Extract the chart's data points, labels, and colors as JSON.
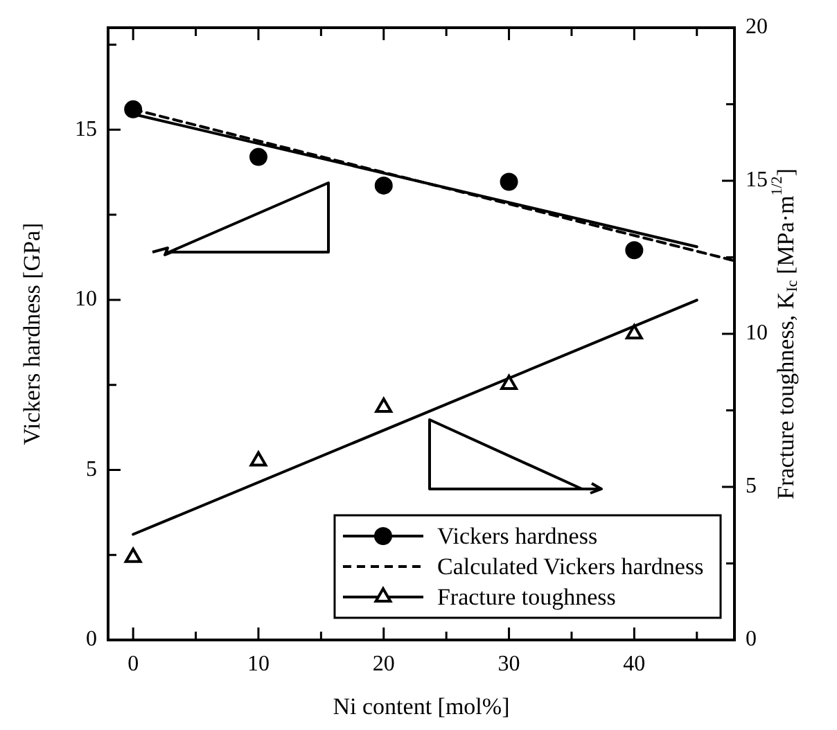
{
  "chart_data": {
    "type": "scatter",
    "xlabel": "Ni content [mol%]",
    "ylabel": "Vickers hardness [GPa]",
    "y2label": "Fracture toughness, K$_{Ic}$ [MPa·m$^{1/2}$]",
    "xlim": [
      -2,
      48
    ],
    "xticks": [
      0,
      {
        "value": 5,
        "label": null
      },
      10,
      {
        "value": 15,
        "label": null
      },
      20,
      {
        "value": 25,
        "label": null
      },
      30,
      {
        "value": 35,
        "label": null
      },
      40,
      {
        "value": 45,
        "label": null
      }
    ],
    "ylim": [
      0,
      18
    ],
    "yticks": [
      0,
      {
        "value": 2.5,
        "label": null
      },
      5,
      {
        "value": 7.5,
        "label": null
      },
      10,
      {
        "value": 12.5,
        "label": null
      },
      15,
      {
        "value": 17.5,
        "label": null
      }
    ],
    "y2lim": [
      0,
      20
    ],
    "y2ticks": [
      0,
      {
        "value": 2.5,
        "label": null
      },
      5,
      {
        "value": 7.5,
        "label": null
      },
      10,
      {
        "value": 12.5,
        "label": null
      },
      15,
      {
        "value": 17.5,
        "label": null
      },
      20
    ],
    "grid": false,
    "legend": "bottom right",
    "series": [
      {
        "name": "Vickers hardness",
        "type": "scatter",
        "marker": "circle",
        "color": "#000000",
        "x": [
          0,
          10,
          20,
          30,
          40
        ],
        "values": [
          15.6,
          14.2,
          13.36,
          13.47,
          11.46
        ]
      },
      {
        "type": "line",
        "marker": "none",
        "line_style": "solid",
        "color": "#000000",
        "x": [
          0,
          45
        ],
        "values": [
          15.46,
          11.56
        ]
      },
      {
        "name": "Calculated Vickers hardness",
        "type": "line",
        "marker": "none",
        "line_style": "dashed",
        "color": "#000000",
        "x": [
          0,
          48
        ],
        "values": [
          15.6,
          11.15
        ]
      },
      {
        "name": "Fracture toughness",
        "type": "scatter",
        "marker": "triangle",
        "axis": "y2",
        "color": "#000000",
        "x": [
          0,
          10,
          20,
          30,
          40
        ],
        "values": [
          2.7,
          5.85,
          7.6,
          8.35,
          10.0
        ]
      },
      {
        "type": "line",
        "marker": "none",
        "line_style": "solid",
        "axis": "y2",
        "color": "#000000",
        "x": [
          0,
          45
        ],
        "values": [
          3.45,
          11.1
        ]
      }
    ]
  }
}
